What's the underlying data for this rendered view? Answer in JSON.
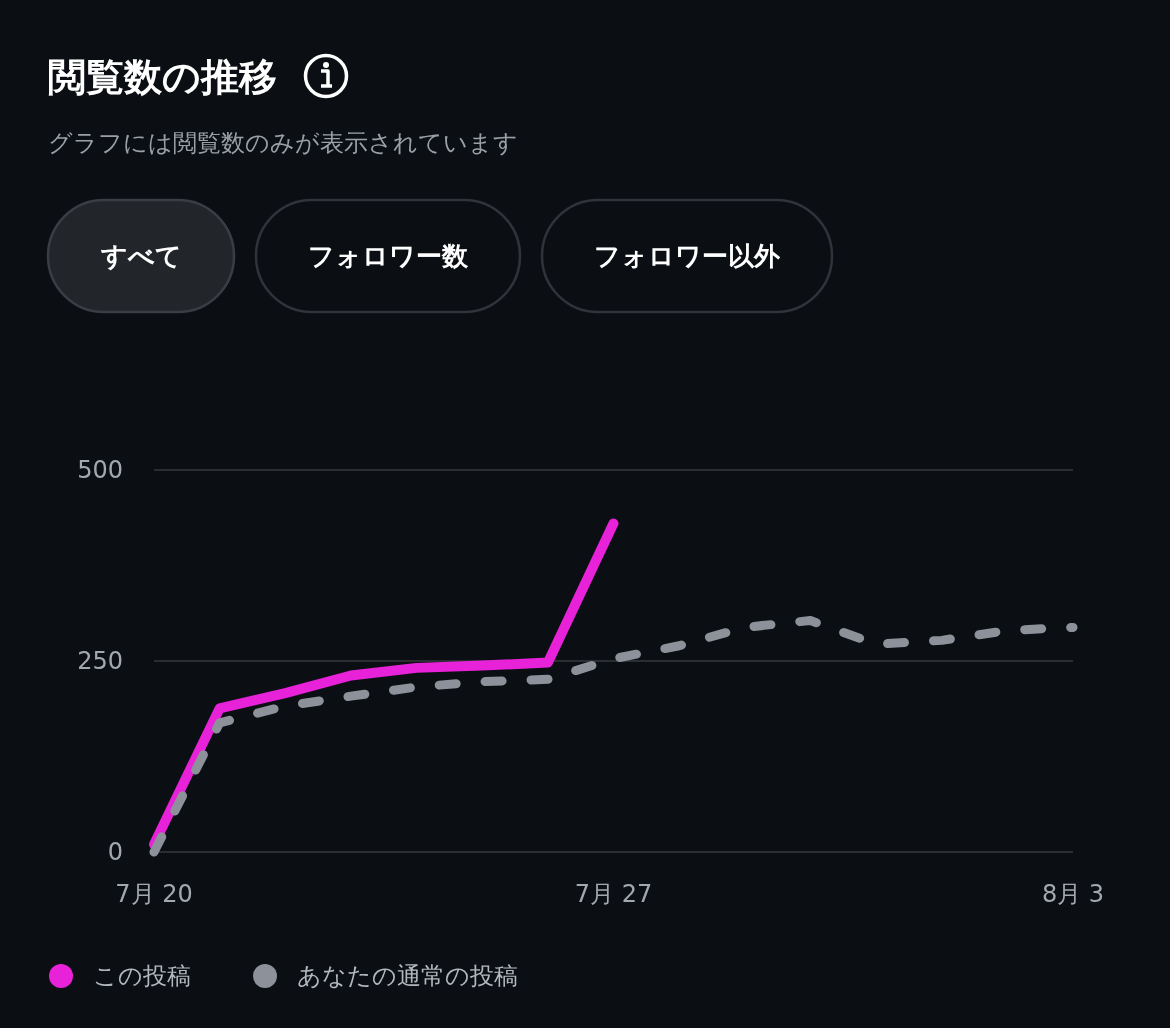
{
  "chart_data": {
    "type": "line",
    "title": "閲覧数の推移",
    "subtitle": "グラフには閲覧数のみが表示されています",
    "annotations": [
      "すべて",
      "フォロワー数",
      "フォロワー以外"
    ],
    "series": [
      {
        "name": "この投稿",
        "color": "#e822d8",
        "x": [
          "--07-20",
          "--07-21",
          "--07-22",
          "--07-23",
          "--07-24",
          "--07-25",
          "--07-26",
          "--07-27"
        ],
        "values": [
          10,
          188,
          208,
          231,
          241,
          244,
          248,
          430
        ]
      },
      {
        "name": "あなたの通常の投稿",
        "color": "#8d929a",
        "line_style": "dashed",
        "x": [
          "--07-20",
          "--07-21",
          "--07-22",
          "--07-23",
          "--07-24",
          "--07-25",
          "--07-26",
          "--07-27",
          "--07-28",
          "--07-29",
          "--07-30",
          "--07-31",
          "--08-01",
          "--08-02",
          "--08-03"
        ],
        "values": [
          0,
          169,
          191,
          204,
          216,
          223,
          226,
          253,
          270,
          294,
          303,
          272,
          277,
          290,
          294
        ]
      }
    ],
    "xlim": [
      "--07-20",
      "--08-03"
    ],
    "xticks": [
      {
        "value": "--07-20",
        "label": "7月 20"
      },
      {
        "value": "--07-27",
        "label": "7月 27"
      },
      {
        "value": "--08-03",
        "label": "8月 3"
      }
    ],
    "ylim": [
      0,
      500
    ],
    "yticks": [
      0,
      250,
      500
    ],
    "grid": "y",
    "legend": "bottom left"
  }
}
